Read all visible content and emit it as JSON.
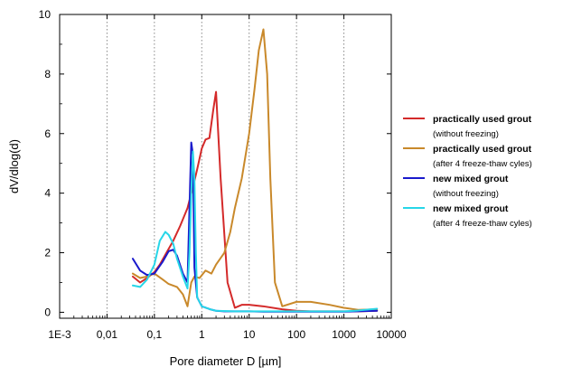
{
  "chart_data": {
    "type": "line",
    "title": "",
    "xlabel": "Pore diameter D [µm]",
    "ylabel": "dV/dlog(d)",
    "x_scale": "log",
    "xlim": [
      0.001,
      10000
    ],
    "ylim": [
      -0.2,
      10
    ],
    "x_tick_labels": [
      "1E-3",
      "0,01",
      "0,1",
      "1",
      "10",
      "100",
      "1000",
      "10000"
    ],
    "x_tick_values": [
      0.001,
      0.01,
      0.1,
      1,
      10,
      100,
      1000,
      10000
    ],
    "y_tick_labels": [
      "0",
      "2",
      "4",
      "6",
      "8",
      "10"
    ],
    "y_tick_values": [
      0,
      2,
      4,
      6,
      8,
      10
    ],
    "grid": "vertical dotted at decades",
    "legend_position": "right",
    "series": [
      {
        "name": "practically used grout",
        "note": "(without freezing)",
        "color": "#d42a2a",
        "x": [
          0.035,
          0.05,
          0.07,
          0.1,
          0.13,
          0.18,
          0.25,
          0.35,
          0.5,
          0.65,
          0.8,
          1.0,
          1.2,
          1.45,
          1.75,
          2.0,
          2.5,
          3.5,
          5,
          7,
          10,
          20,
          50,
          100,
          200,
          500,
          1000,
          2000,
          5000
        ],
        "y": [
          1.2,
          1.0,
          1.15,
          1.35,
          1.6,
          2.0,
          2.4,
          2.9,
          3.5,
          4.2,
          4.8,
          5.5,
          5.8,
          5.85,
          6.8,
          7.4,
          4.5,
          1.0,
          0.15,
          0.25,
          0.25,
          0.2,
          0.1,
          0.05,
          0.03,
          0.03,
          0.03,
          0.03,
          0.05
        ]
      },
      {
        "name": "practically used grout",
        "note": "(after 4 freeze-thaw cyles)",
        "color": "#c9892b",
        "x": [
          0.035,
          0.05,
          0.07,
          0.1,
          0.15,
          0.2,
          0.3,
          0.4,
          0.5,
          0.6,
          0.7,
          0.9,
          1.2,
          1.6,
          2.0,
          3.0,
          4.0,
          5.0,
          7.0,
          10,
          13,
          16,
          20,
          24,
          28,
          35,
          50,
          100,
          200,
          500,
          1000,
          2000,
          5000
        ],
        "y": [
          1.3,
          1.15,
          1.2,
          1.3,
          1.1,
          0.95,
          0.85,
          0.6,
          0.2,
          1.0,
          1.2,
          1.15,
          1.4,
          1.3,
          1.6,
          2.0,
          2.7,
          3.5,
          4.5,
          6.0,
          7.5,
          8.8,
          9.5,
          8.0,
          4.5,
          1.0,
          0.2,
          0.35,
          0.35,
          0.25,
          0.15,
          0.08,
          0.1
        ]
      },
      {
        "name": "new mixed grout",
        "note": "(without freezing)",
        "color": "#1a1acc",
        "x": [
          0.035,
          0.05,
          0.07,
          0.1,
          0.15,
          0.2,
          0.25,
          0.3,
          0.4,
          0.5,
          0.55,
          0.6,
          0.65,
          0.7,
          0.8,
          1.0,
          1.5,
          2,
          3,
          5,
          10,
          20,
          50,
          100,
          1000,
          5000
        ],
        "y": [
          1.8,
          1.4,
          1.25,
          1.3,
          1.7,
          2.05,
          2.1,
          1.9,
          1.3,
          1.0,
          3.5,
          5.7,
          5.3,
          1.5,
          0.5,
          0.2,
          0.1,
          0.05,
          0.03,
          0.03,
          0.03,
          0.02,
          0.02,
          0.02,
          0.02,
          0.05
        ]
      },
      {
        "name": "new mixed grout",
        "note": "(after 4 freeze-thaw cyles)",
        "color": "#27d6e8",
        "x": [
          0.035,
          0.05,
          0.07,
          0.1,
          0.13,
          0.17,
          0.2,
          0.25,
          0.3,
          0.4,
          0.5,
          0.55,
          0.6,
          0.65,
          0.7,
          0.75,
          0.8,
          1.0,
          1.5,
          2,
          5,
          10,
          50,
          100,
          500,
          1000,
          2000,
          5000
        ],
        "y": [
          0.9,
          0.85,
          1.1,
          1.6,
          2.4,
          2.7,
          2.6,
          2.3,
          1.8,
          1.2,
          0.8,
          2.0,
          4.0,
          5.4,
          4.5,
          2.0,
          0.5,
          0.2,
          0.1,
          0.05,
          0.03,
          0.03,
          0.03,
          0.03,
          0.03,
          0.03,
          0.06,
          0.12
        ]
      }
    ]
  }
}
